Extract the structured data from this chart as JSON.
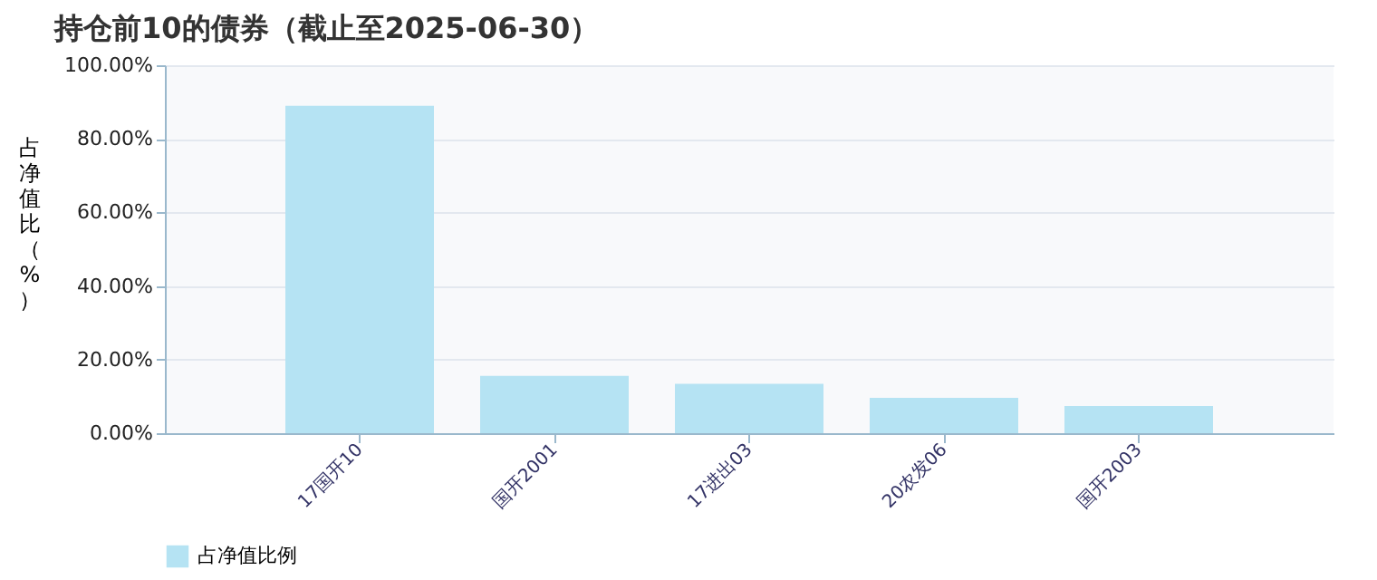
{
  "chart_data": {
    "type": "bar",
    "title": "持仓前10的债券（截止至2025-06-30）",
    "ylabel": "占净值比（%）",
    "categories": [
      "17国开10",
      "国开2001",
      "17进出03",
      "20农发06",
      "国开2003"
    ],
    "series": [
      {
        "name": "占净值比例",
        "color": "#b5e3f3",
        "values": [
          89.0,
          15.6,
          13.4,
          9.6,
          7.4
        ]
      }
    ],
    "ylim": [
      0,
      100
    ],
    "yticks": [
      {
        "value": 0,
        "label": "0.00%"
      },
      {
        "value": 20,
        "label": "20.00%"
      },
      {
        "value": 40,
        "label": "40.00%"
      },
      {
        "value": 60,
        "label": "60.00%"
      },
      {
        "value": 80,
        "label": "80.00%"
      },
      {
        "value": 100,
        "label": "100.00%"
      }
    ],
    "grid": "y",
    "legend": "bottom"
  }
}
